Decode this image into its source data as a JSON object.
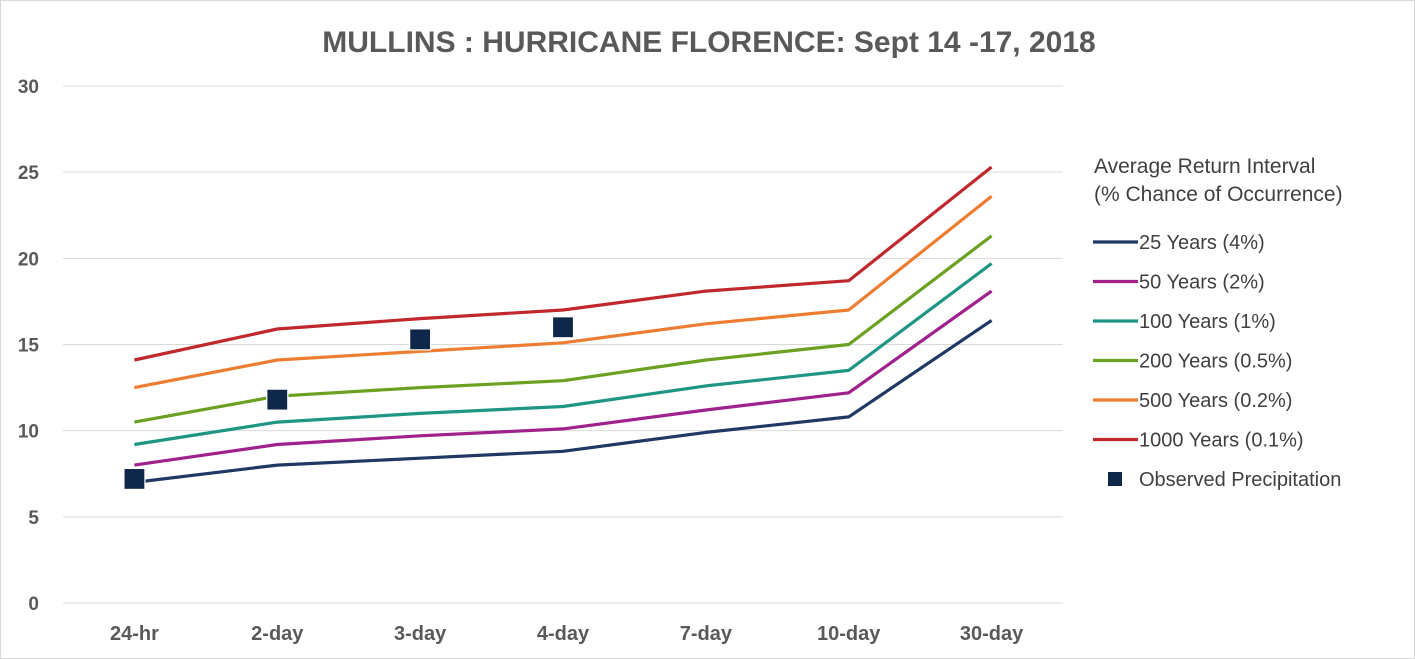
{
  "chart_data": {
    "type": "line",
    "title": "MULLINS : HURRICANE FLORENCE: Sept 14 -17, 2018",
    "categories": [
      "24-hr",
      "2-day",
      "3-day",
      "4-day",
      "7-day",
      "10-day",
      "30-day"
    ],
    "yticks": [
      "0",
      "5",
      "10",
      "15",
      "20",
      "25",
      "30"
    ],
    "ylim": [
      0,
      30
    ],
    "grid": true,
    "legend_position": "right",
    "legend_title_line1": "Average Return Interval",
    "legend_title_line2": "(% Chance of Occurrence)",
    "series": [
      {
        "name": "25 Years (4%)",
        "color": "#1f3864",
        "values": [
          7.0,
          8.0,
          8.4,
          8.8,
          9.9,
          10.8,
          16.4
        ]
      },
      {
        "name": "50 Years (2%)",
        "color": "#a0208c",
        "values": [
          8.0,
          9.2,
          9.7,
          10.1,
          11.2,
          12.2,
          18.1
        ]
      },
      {
        "name": "100 Years (1%)",
        "color": "#1f9583",
        "values": [
          9.2,
          10.5,
          11.0,
          11.4,
          12.6,
          13.5,
          19.7
        ]
      },
      {
        "name": "200 Years (0.5%)",
        "color": "#6aa121",
        "values": [
          10.5,
          12.0,
          12.5,
          12.9,
          14.1,
          15.0,
          21.3
        ]
      },
      {
        "name": "500 Years (0.2%)",
        "color": "#ed7d31",
        "values": [
          12.5,
          14.1,
          14.6,
          15.1,
          16.2,
          17.0,
          23.6
        ]
      },
      {
        "name": "1000 Years (0.1%)",
        "color": "#c0282d",
        "values": [
          14.1,
          15.9,
          16.5,
          17.0,
          18.1,
          18.7,
          25.3
        ]
      }
    ],
    "observed": {
      "name": "Observed Precipitation",
      "color": "#0f2748",
      "values": [
        7.2,
        11.8,
        15.3,
        16.0,
        null,
        null,
        null
      ]
    }
  }
}
